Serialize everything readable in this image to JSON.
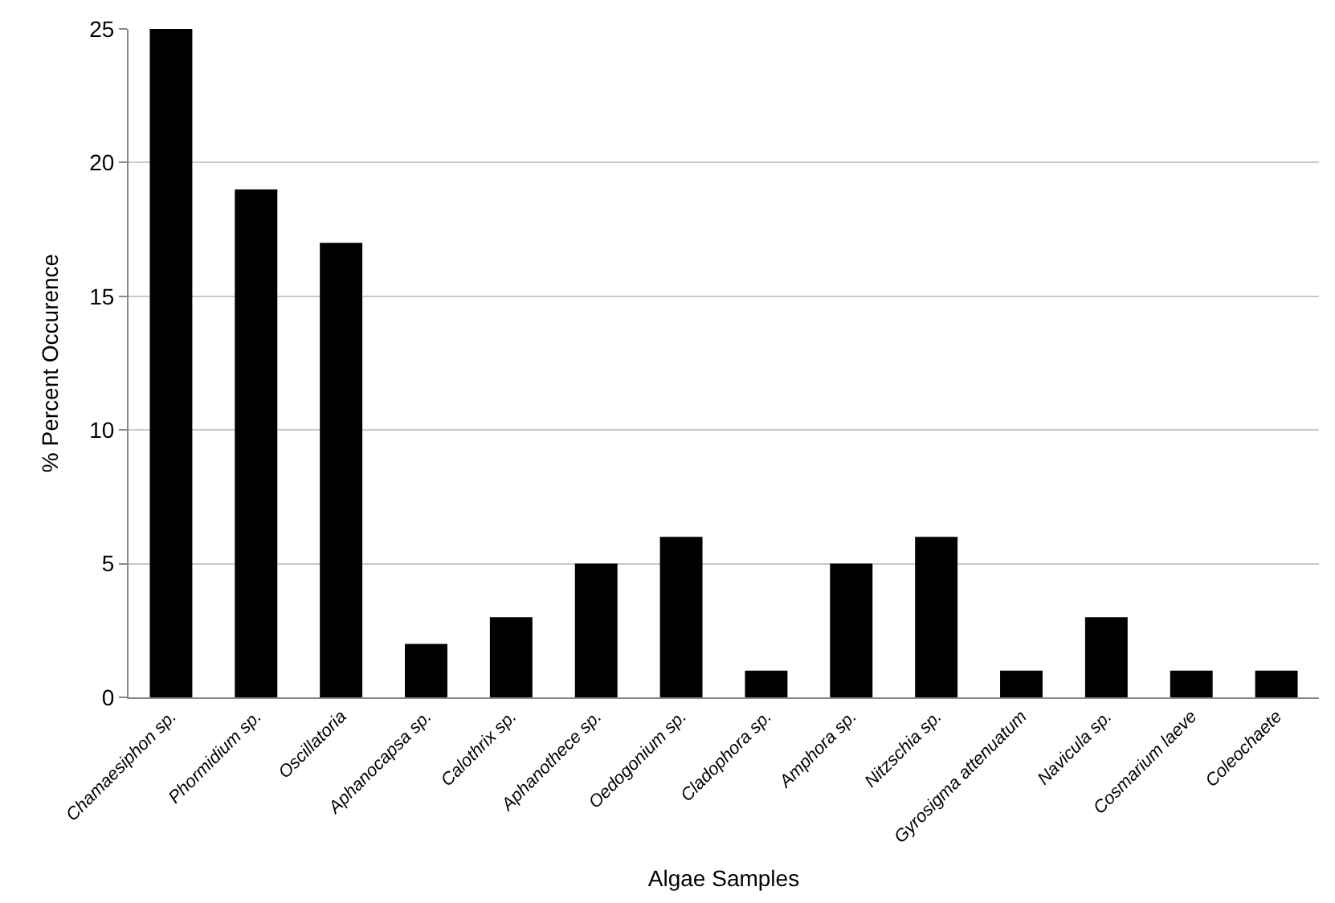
{
  "chart_data": {
    "type": "bar",
    "xlabel": "Algae Samples",
    "ylabel": "% Percent Occurence",
    "categories": [
      "Chamaesiphon sp.",
      "Phormidium sp.",
      "Oscillatoria",
      "Aphanocapsa sp.",
      "Calothrix sp.",
      "Aphanothece sp.",
      "Oedogonium sp.",
      "Cladophora sp.",
      "Amphora sp.",
      "Nitzschia sp.",
      "Gyrosigma attenuatum",
      "Navicula sp.",
      "Cosmarium laeve",
      "Coleochaete"
    ],
    "values": [
      25,
      19,
      17,
      2,
      3,
      5,
      6,
      1,
      5,
      6,
      1,
      3,
      1,
      1
    ],
    "color": "#000000",
    "ylim": [
      0,
      25
    ],
    "yticks": [
      0,
      5,
      10,
      15,
      20,
      25
    ],
    "grid": "y"
  }
}
